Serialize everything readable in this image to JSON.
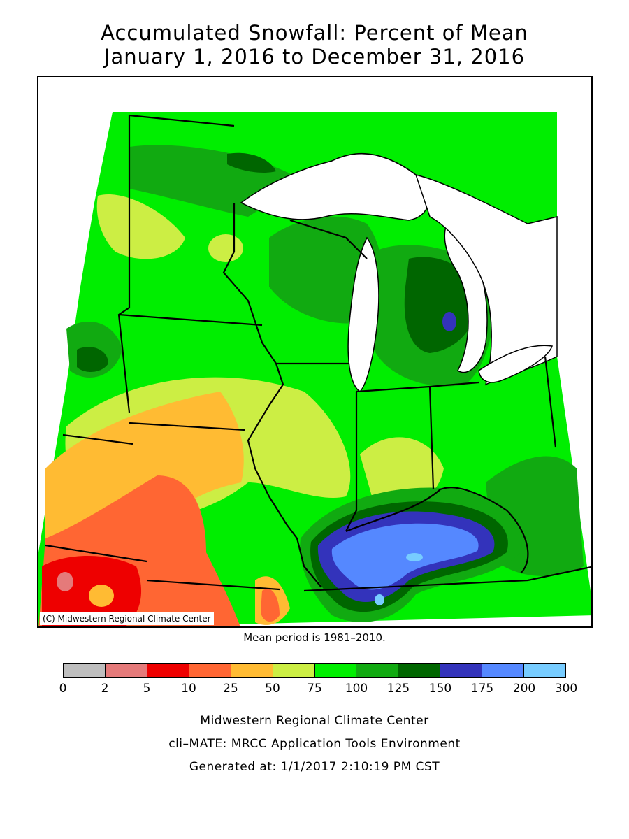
{
  "title": {
    "line1": "Accumulated Snowfall: Percent of Mean",
    "line2": "January 1, 2016 to December 31, 2016"
  },
  "map": {
    "copyright": "(C) Midwestern Regional Climate Center",
    "regions": [
      "Minnesota",
      "Wisconsin",
      "Michigan",
      "Iowa",
      "Illinois",
      "Indiana",
      "Ohio",
      "Missouri",
      "Kentucky"
    ]
  },
  "mean_period": "Mean period is 1981–2010.",
  "legend": {
    "ticks": [
      "0",
      "2",
      "5",
      "10",
      "25",
      "50",
      "75",
      "100",
      "125",
      "150",
      "175",
      "200",
      "300"
    ],
    "colors": [
      "#bebebe",
      "#e57a7a",
      "#ee0000",
      "#ff6633",
      "#ffbb33",
      "#ccee44",
      "#00ee00",
      "#11aa11",
      "#006600",
      "#3333bb",
      "#5588ff",
      "#77ccff"
    ]
  },
  "footer": {
    "line1": "Midwestern Regional Climate Center",
    "line2": "cli–MATE: MRCC Application Tools Environment",
    "line3": "Generated at: 1/1/2017 2:10:19 PM CST"
  }
}
